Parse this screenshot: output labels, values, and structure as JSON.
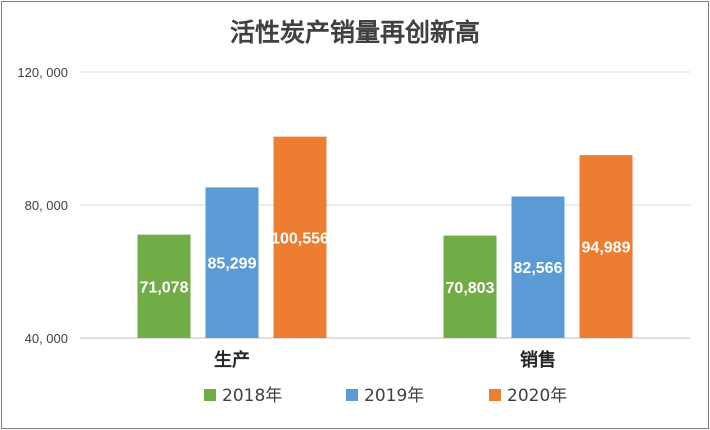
{
  "chart_data": {
    "type": "bar",
    "title": "活性炭产销量再创新高",
    "categories": [
      "生产",
      "销售"
    ],
    "series": [
      {
        "name": "2018年",
        "color": "#70ad47",
        "values": [
          71078,
          70803
        ],
        "labels": [
          "71,078",
          "70,803"
        ]
      },
      {
        "name": "2019年",
        "color": "#5b9bd5",
        "values": [
          85299,
          82566
        ],
        "labels": [
          "85,299",
          "82,566"
        ]
      },
      {
        "name": "2020年",
        "color": "#ed7d31",
        "values": [
          100556,
          94989
        ],
        "labels": [
          "100,556",
          "94,989"
        ]
      }
    ],
    "ylim": [
      40000,
      120000
    ],
    "yticks": [
      {
        "value": 40000,
        "label": "40, 000"
      },
      {
        "value": 80000,
        "label": "80, 000"
      },
      {
        "value": 120000,
        "label": "120, 000"
      }
    ],
    "grid": true,
    "legend": "bottom"
  }
}
